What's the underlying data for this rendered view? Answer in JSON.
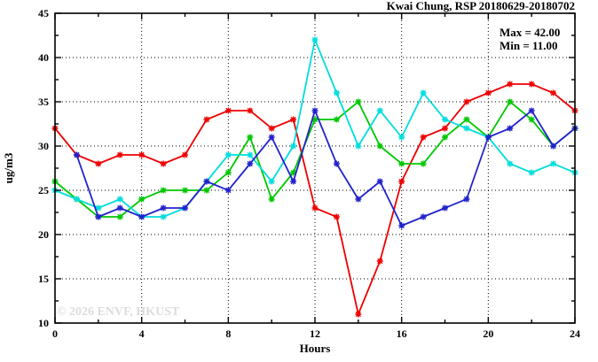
{
  "title": "Kwai Chung, RSP 20180629-20180702",
  "annotations": {
    "max_label": "Max = 42.00",
    "min_label": "Min = 11.00"
  },
  "watermark": "© 2026 ENVF, HKUST",
  "chart_data": {
    "type": "line",
    "title": "Kwai Chung, RSP 20180629-20180702",
    "xlabel": "Hours",
    "ylabel": "ug/m3",
    "xlim": [
      0,
      24
    ],
    "ylim": [
      10,
      45
    ],
    "x_major_ticks": [
      0,
      4,
      8,
      12,
      16,
      20,
      24
    ],
    "x_minor_tick_step": 2,
    "y_major_ticks": [
      10,
      15,
      20,
      25,
      30,
      35,
      40,
      45
    ],
    "y_minor_tick_step": 2.5,
    "grid": "dotted-at-major-ticks",
    "legend_position": "none",
    "marker": "asterisk",
    "stats": {
      "max": 42.0,
      "min": 11.0
    },
    "x": [
      0,
      1,
      2,
      3,
      4,
      5,
      6,
      7,
      8,
      9,
      10,
      11,
      12,
      13,
      14,
      15,
      16,
      17,
      18,
      19,
      20,
      21,
      22,
      23,
      24
    ],
    "series": [
      {
        "name": "red",
        "color": "#ee0000",
        "values": [
          32,
          29,
          28,
          29,
          29,
          28,
          29,
          33,
          34,
          34,
          32,
          33,
          23,
          22,
          11,
          17,
          26,
          31,
          32,
          35,
          36,
          37,
          37,
          36,
          34
        ]
      },
      {
        "name": "green",
        "color": "#00c800",
        "values": [
          26,
          24,
          22,
          22,
          24,
          25,
          25,
          25,
          27,
          31,
          24,
          27,
          33,
          33,
          35,
          30,
          28,
          28,
          31,
          33,
          31,
          35,
          33,
          30,
          32
        ]
      },
      {
        "name": "cyan",
        "color": "#00dddd",
        "values": [
          25,
          24,
          23,
          24,
          22,
          22,
          23,
          26,
          29,
          29,
          26,
          30,
          42,
          36,
          30,
          34,
          31,
          36,
          33,
          32,
          31,
          28,
          27,
          28,
          27
        ]
      },
      {
        "name": "blue",
        "color": "#2222cc",
        "values": [
          null,
          29,
          22,
          23,
          22,
          23,
          23,
          26,
          25,
          28,
          31,
          26,
          34,
          28,
          24,
          26,
          21,
          22,
          23,
          24,
          31,
          32,
          34,
          30,
          32
        ]
      }
    ]
  }
}
